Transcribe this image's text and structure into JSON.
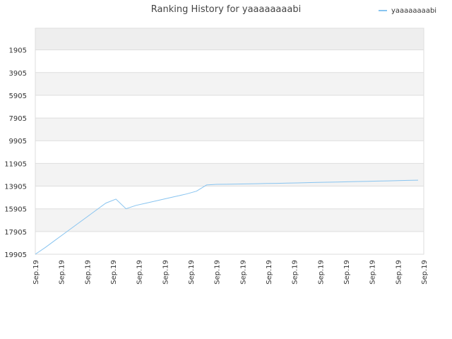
{
  "chart_data": {
    "type": "line",
    "title": "Ranking History for yaaaaaaaabi",
    "xlabel": "",
    "ylabel": "",
    "y_inverted": true,
    "ylim": [
      19905,
      0
    ],
    "y_ticks": [
      "1905",
      "3905",
      "5905",
      "7905",
      "9905",
      "11905",
      "13905",
      "15905",
      "17905",
      "19905"
    ],
    "x_ticks": [
      "Sep.19",
      "Sep.19",
      "Sep.19",
      "Sep.19",
      "Sep.19",
      "Sep.19",
      "Sep.19",
      "Sep.19",
      "Sep.19",
      "Sep.19",
      "Sep.19",
      "Sep.19",
      "Sep.19",
      "Sep.19",
      "Sep.19",
      "Sep.19"
    ],
    "legend_position": "top-right",
    "grid": true,
    "colors": {
      "series": "#88c4f0",
      "band": "#eeeeee",
      "grid": "#dddddd"
    },
    "series": [
      {
        "name": "yaaaaaaaabi",
        "values": [
          19905,
          19300,
          18650,
          18000,
          17350,
          16700,
          16050,
          15400,
          15050,
          15900,
          15600,
          15400,
          15200,
          15000,
          14800,
          14600,
          14350,
          13800,
          13750,
          13740,
          13720,
          13710,
          13690,
          13670,
          13660,
          13640,
          13620,
          13600,
          13580,
          13560,
          13540,
          13520,
          13500,
          13480,
          13460,
          13440,
          13420,
          13400,
          13380
        ]
      }
    ]
  }
}
